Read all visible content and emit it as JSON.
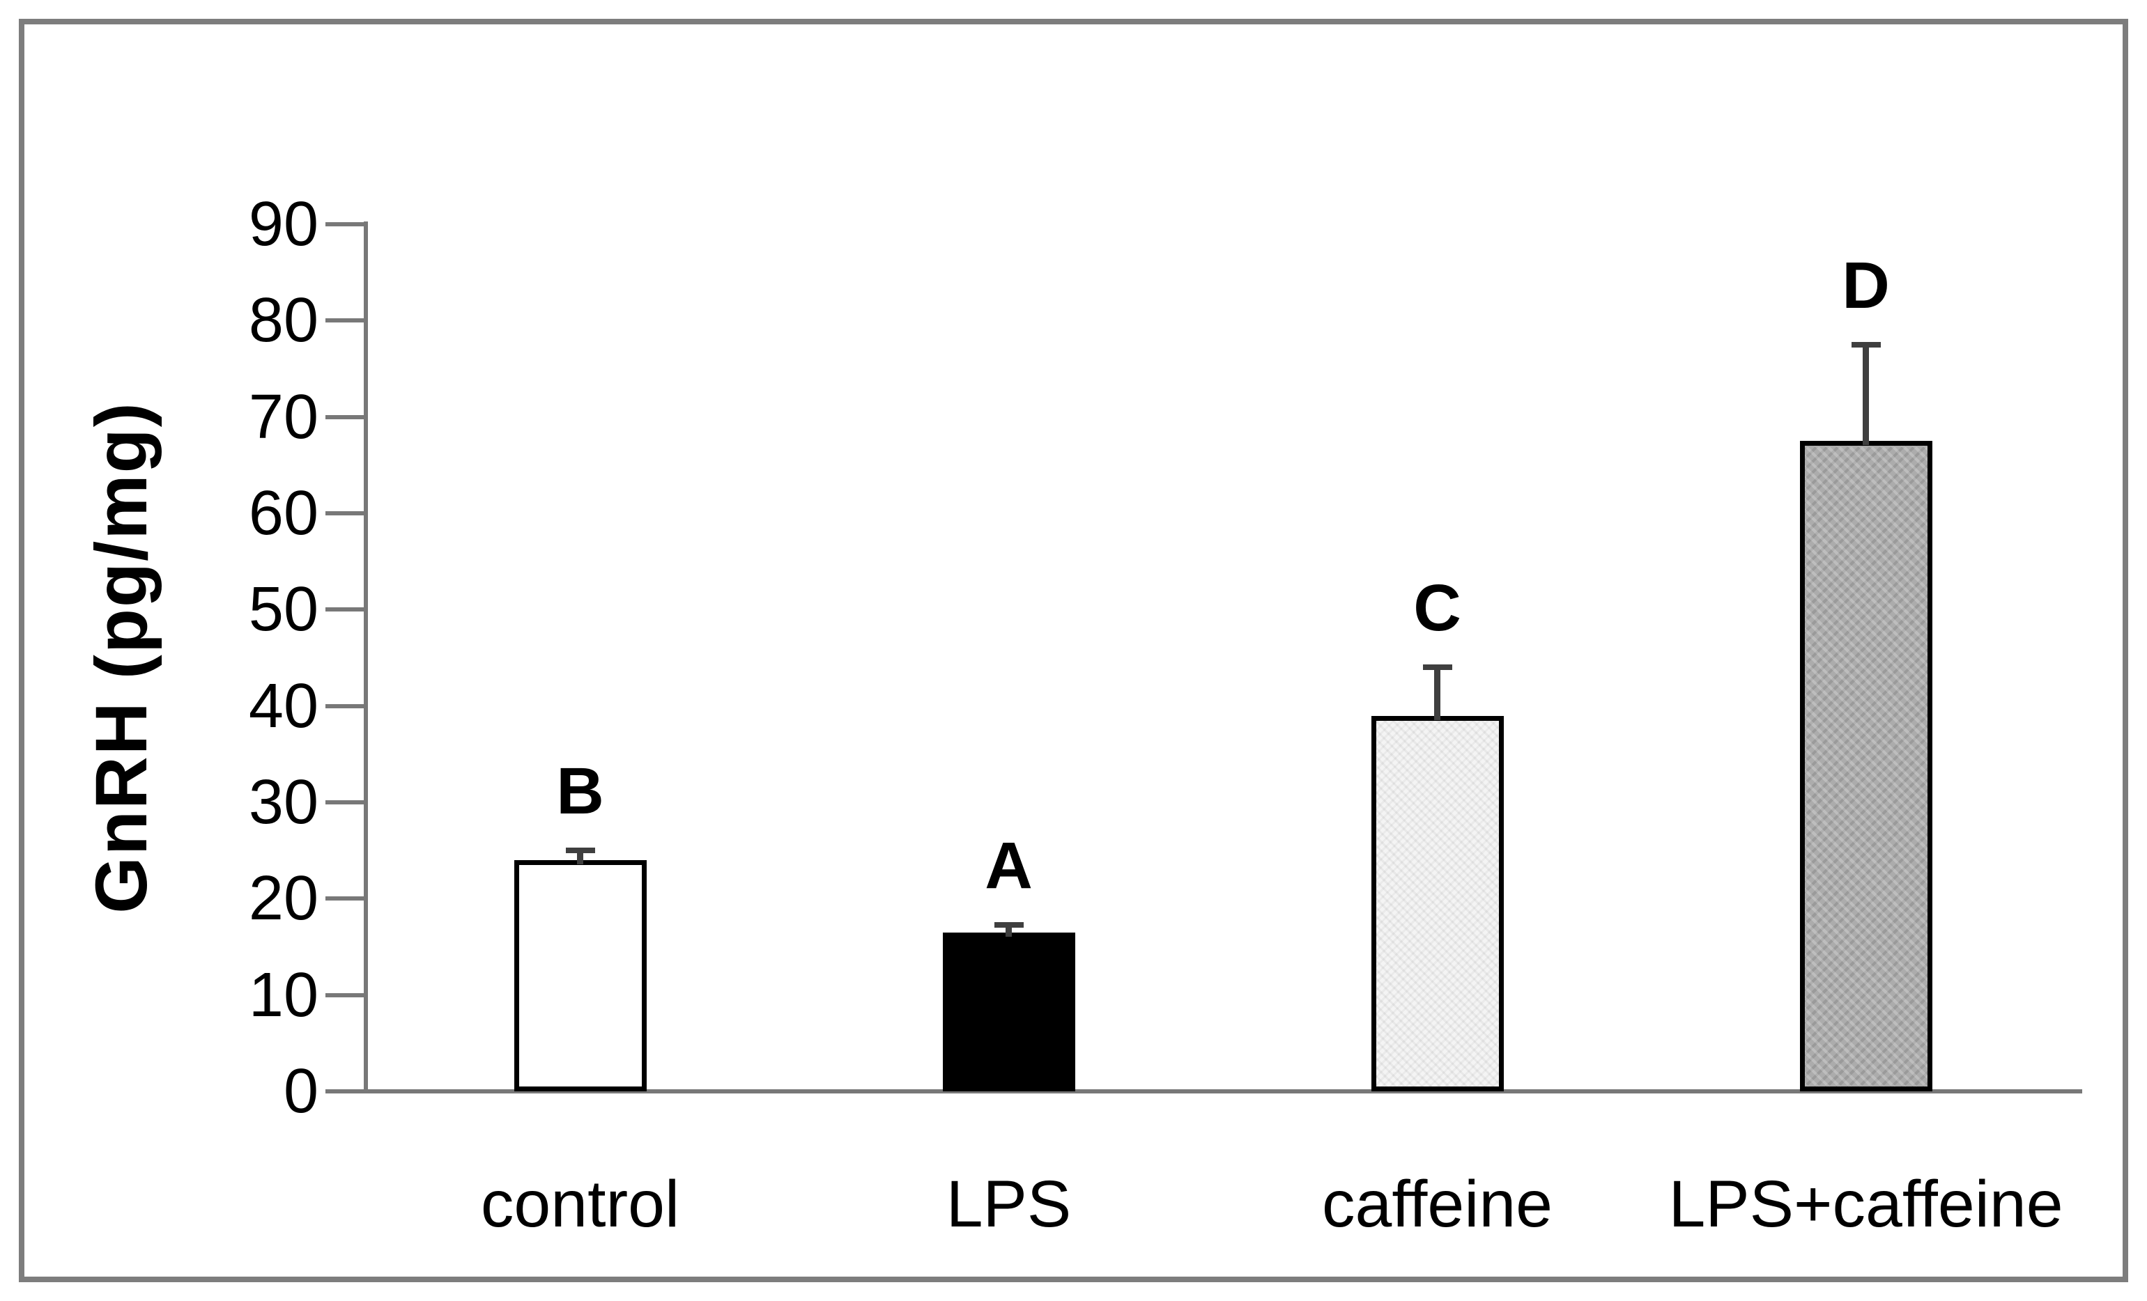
{
  "chart_data": {
    "type": "bar",
    "title": "",
    "xlabel": "",
    "ylabel": "GnRH (pg/mg)",
    "ylim": [
      0,
      90
    ],
    "yticks": [
      0,
      10,
      20,
      30,
      40,
      50,
      60,
      70,
      80,
      90
    ],
    "grid": false,
    "legend": "none",
    "categories": [
      "control",
      "LPS",
      "caffeine",
      "LPS+caffeine"
    ],
    "values": [
      24,
      16.5,
      39,
      67.5
    ],
    "errors_plus": [
      1,
      0.8,
      5,
      10
    ],
    "significance_letters": [
      "B",
      "A",
      "C",
      "D"
    ],
    "bar_fill_colors": [
      "#ffffff",
      "#000000",
      "#f4f4f4",
      "#acacac"
    ],
    "bar_patterns": [
      "none",
      "solid",
      "stipple",
      "chevron"
    ],
    "bar_border_color": "#000000",
    "axis_color": "#787878",
    "error_bar_color": "#3f3f3f",
    "frame_border_color": "#7d7d7d"
  }
}
